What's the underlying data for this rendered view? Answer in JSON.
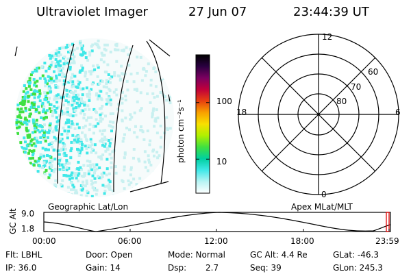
{
  "header": {
    "title": "Ultraviolet Imager",
    "date": "27 Jun 07",
    "time": "23:44:39 UT"
  },
  "colorbar": {
    "label": "photon cm⁻²s⁻¹",
    "ticks": [
      {
        "label": "100",
        "value": 100
      },
      {
        "label": "10",
        "value": 10
      }
    ],
    "scale": "log",
    "stops": [
      "#000000",
      "#2a0040",
      "#7a0060",
      "#c0003a",
      "#e84010",
      "#f8a000",
      "#f8e000",
      "#b0f000",
      "#40e040",
      "#00d0a0",
      "#40e8e8",
      "#b8f4f4",
      "#ffffff"
    ]
  },
  "polar_plot": {
    "lat_labels": [
      "60",
      "70",
      "80"
    ],
    "mlt_labels": {
      "top": "12",
      "left": "18",
      "right": "6",
      "bottom": "0"
    },
    "caption": "Apex MLat/MLT"
  },
  "geo_caption": "Geographic Lat/Lon",
  "altitude_plot": {
    "ylabel": "GC Alt",
    "ytick_top": "9.0",
    "ytick_bottom": "1.8",
    "xticks": [
      "00:00",
      "06:00",
      "12:00",
      "18:00",
      "23:59"
    ],
    "marker_time": "23:44",
    "marker_color": "#e00000"
  },
  "info": {
    "flt": "Flt: LBHL",
    "ip": "IP: 36.0",
    "door": "Door: Open",
    "gain": "Gain: 14",
    "mode": "Mode: Normal",
    "dsp_label": "Dsp:",
    "dsp_value": "2.7",
    "gc_alt": "GC Alt: 4.4 Re",
    "seq": "Seq: 39",
    "glat": "GLat: -46.3",
    "glon": "GLon: 245.3"
  },
  "colors": {
    "aurora_bright": "#40e040",
    "aurora_mid": "#40e8e8",
    "aurora_faint": "#c8f0f0"
  }
}
